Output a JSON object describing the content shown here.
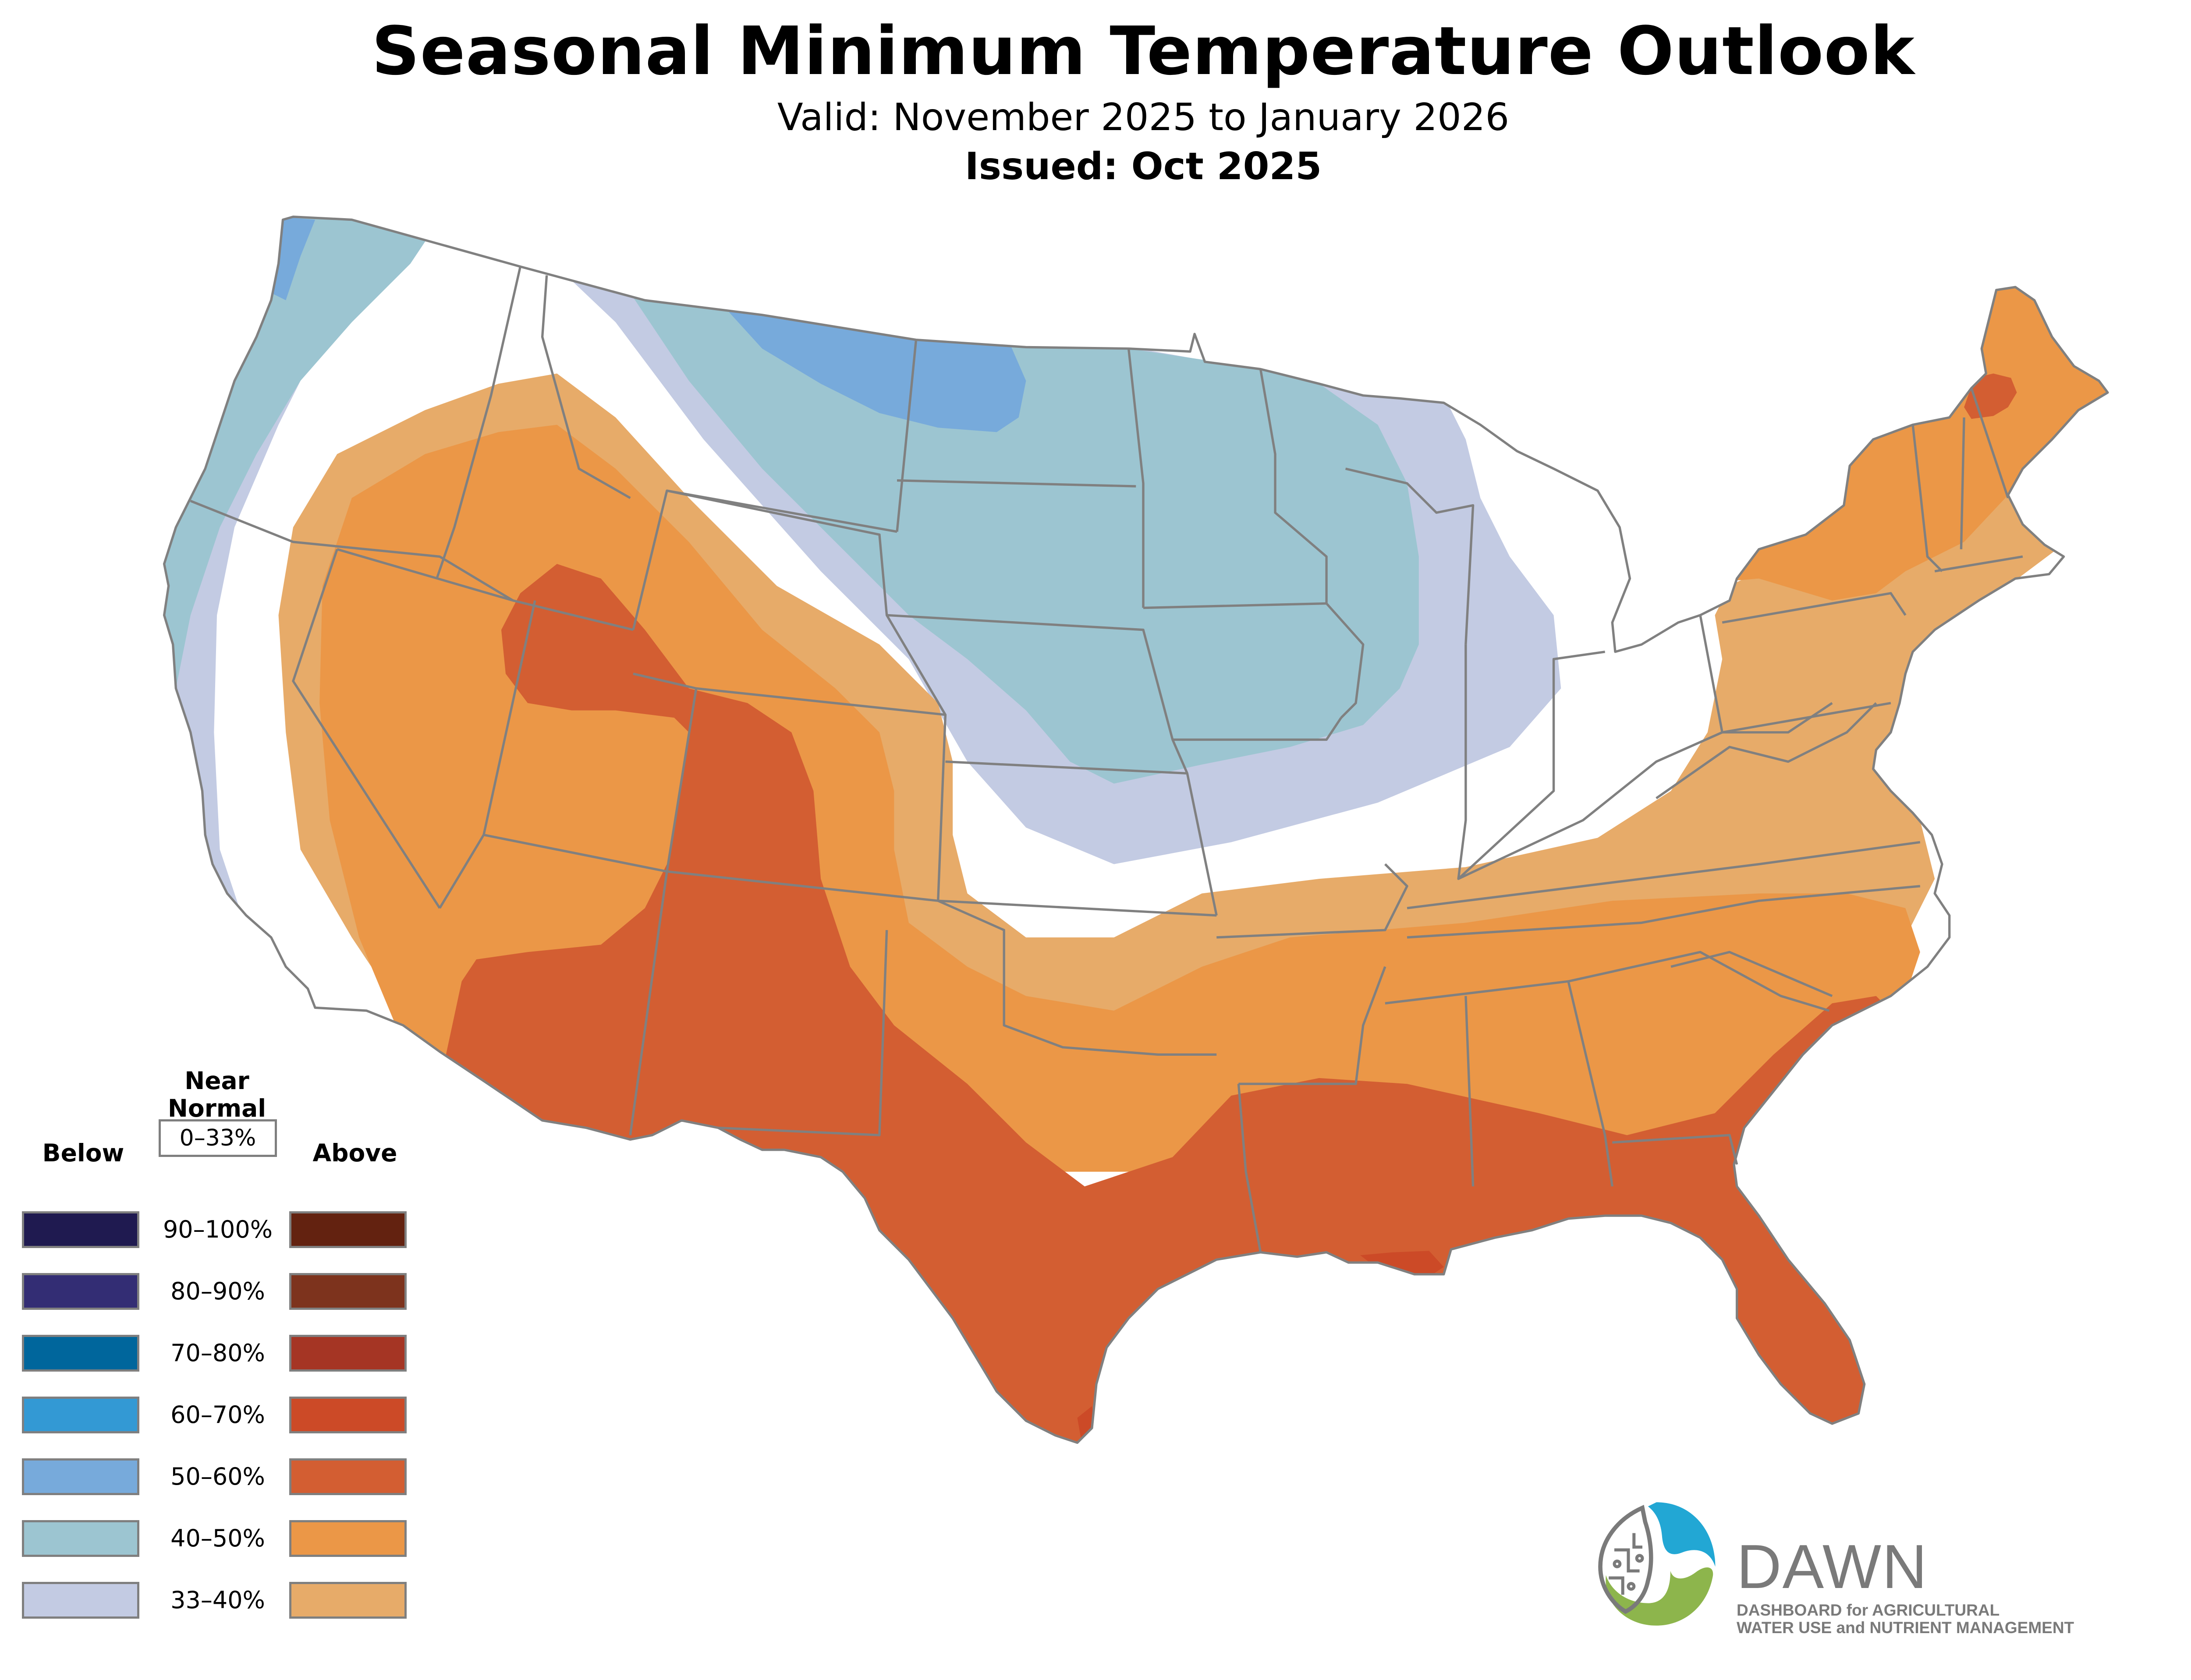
{
  "header": {
    "title": "Seasonal Minimum Temperature Outlook",
    "valid": "Valid: November 2025 to January 2026",
    "issued": "Issued: Oct 2025"
  },
  "legend": {
    "below_label": "Below",
    "above_label": "Above",
    "near_normal_label_line1": "Near",
    "near_normal_label_line2": "Normal",
    "near_normal_range": "0–33%",
    "rows": [
      {
        "range": "90–100%",
        "below_color": "#1f1a50",
        "above_color": "#632210"
      },
      {
        "range": "80–90%",
        "below_color": "#332d74",
        "above_color": "#7d331d"
      },
      {
        "range": "70–80%",
        "below_color": "#00669c",
        "above_color": "#a53524"
      },
      {
        "range": "60–70%",
        "below_color": "#3399d4",
        "above_color": "#cc4a27"
      },
      {
        "range": "50–60%",
        "below_color": "#77aadb",
        "above_color": "#d35e32"
      },
      {
        "range": "40–50%",
        "below_color": "#9cc5d1",
        "above_color": "#eb9747"
      },
      {
        "range": "33–40%",
        "below_color": "#c3cbe3",
        "above_color": "#e7ab69"
      }
    ]
  },
  "map": {
    "state_line_color": "#808080",
    "near_normal_color": "#ffffff"
  },
  "logo": {
    "name": "DAWN",
    "line1": "DASHBOARD for AGRICULTURAL",
    "line2": "WATER USE and NUTRIENT MANAGEMENT",
    "blue": "#22a7d4",
    "green": "#8db54c",
    "gray": "#7a7a7a"
  }
}
